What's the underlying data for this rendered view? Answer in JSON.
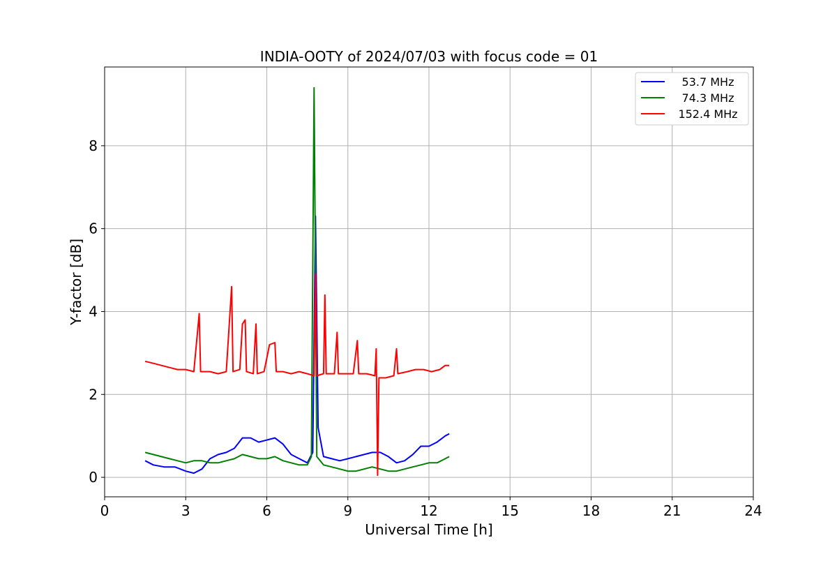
{
  "chart_data": {
    "type": "line",
    "title": "INDIA-OOTY of 2024/07/03 with focus code = 01",
    "xlabel": "Universal Time [h]",
    "ylabel": "Y-factor [dB]",
    "xlim": [
      0,
      24
    ],
    "ylim": [
      -0.47,
      9.9
    ],
    "xticks": [
      0,
      3,
      6,
      9,
      12,
      15,
      18,
      21,
      24
    ],
    "yticks": [
      0,
      2,
      4,
      6,
      8
    ],
    "grid": true,
    "legend_position": "top-right",
    "series": [
      {
        "name": "53.7 MHz",
        "color": "#0000ff",
        "points": [
          [
            1.5,
            0.4
          ],
          [
            1.8,
            0.3
          ],
          [
            2.2,
            0.25
          ],
          [
            2.6,
            0.25
          ],
          [
            3.0,
            0.15
          ],
          [
            3.3,
            0.1
          ],
          [
            3.6,
            0.2
          ],
          [
            3.9,
            0.45
          ],
          [
            4.2,
            0.55
          ],
          [
            4.5,
            0.6
          ],
          [
            4.8,
            0.7
          ],
          [
            5.1,
            0.95
          ],
          [
            5.4,
            0.95
          ],
          [
            5.7,
            0.85
          ],
          [
            6.0,
            0.9
          ],
          [
            6.3,
            0.95
          ],
          [
            6.6,
            0.8
          ],
          [
            6.9,
            0.55
          ],
          [
            7.2,
            0.45
          ],
          [
            7.5,
            0.35
          ],
          [
            7.7,
            0.6
          ],
          [
            7.8,
            6.3
          ],
          [
            7.9,
            1.2
          ],
          [
            8.1,
            0.5
          ],
          [
            8.4,
            0.45
          ],
          [
            8.7,
            0.4
          ],
          [
            9.0,
            0.45
          ],
          [
            9.3,
            0.5
          ],
          [
            9.6,
            0.55
          ],
          [
            9.9,
            0.6
          ],
          [
            10.2,
            0.6
          ],
          [
            10.5,
            0.5
          ],
          [
            10.8,
            0.35
          ],
          [
            11.1,
            0.4
          ],
          [
            11.4,
            0.55
          ],
          [
            11.7,
            0.75
          ],
          [
            12.0,
            0.75
          ],
          [
            12.3,
            0.85
          ],
          [
            12.6,
            1.0
          ],
          [
            12.75,
            1.05
          ]
        ]
      },
      {
        "name": "74.3 MHz",
        "color": "#008000",
        "points": [
          [
            1.5,
            0.6
          ],
          [
            1.8,
            0.55
          ],
          [
            2.1,
            0.5
          ],
          [
            2.4,
            0.45
          ],
          [
            2.7,
            0.4
          ],
          [
            3.0,
            0.35
          ],
          [
            3.3,
            0.4
          ],
          [
            3.6,
            0.4
          ],
          [
            3.9,
            0.35
          ],
          [
            4.2,
            0.35
          ],
          [
            4.5,
            0.4
          ],
          [
            4.8,
            0.45
          ],
          [
            5.1,
            0.55
          ],
          [
            5.4,
            0.5
          ],
          [
            5.7,
            0.45
          ],
          [
            6.0,
            0.45
          ],
          [
            6.3,
            0.5
          ],
          [
            6.6,
            0.4
          ],
          [
            6.9,
            0.35
          ],
          [
            7.2,
            0.3
          ],
          [
            7.5,
            0.3
          ],
          [
            7.65,
            0.5
          ],
          [
            7.75,
            9.4
          ],
          [
            7.85,
            0.5
          ],
          [
            8.1,
            0.3
          ],
          [
            8.4,
            0.25
          ],
          [
            8.7,
            0.2
          ],
          [
            9.0,
            0.15
          ],
          [
            9.3,
            0.15
          ],
          [
            9.6,
            0.2
          ],
          [
            9.9,
            0.25
          ],
          [
            10.2,
            0.2
          ],
          [
            10.5,
            0.15
          ],
          [
            10.8,
            0.15
          ],
          [
            11.1,
            0.2
          ],
          [
            11.4,
            0.25
          ],
          [
            11.7,
            0.3
          ],
          [
            12.0,
            0.35
          ],
          [
            12.3,
            0.35
          ],
          [
            12.6,
            0.45
          ],
          [
            12.75,
            0.5
          ]
        ]
      },
      {
        "name": "152.4 MHz",
        "color": "#ff0000",
        "points": [
          [
            1.5,
            2.8
          ],
          [
            1.8,
            2.75
          ],
          [
            2.1,
            2.7
          ],
          [
            2.4,
            2.65
          ],
          [
            2.7,
            2.6
          ],
          [
            3.0,
            2.6
          ],
          [
            3.3,
            2.55
          ],
          [
            3.5,
            3.95
          ],
          [
            3.55,
            2.55
          ],
          [
            3.9,
            2.55
          ],
          [
            4.2,
            2.5
          ],
          [
            4.5,
            2.55
          ],
          [
            4.7,
            4.6
          ],
          [
            4.75,
            2.55
          ],
          [
            5.0,
            2.6
          ],
          [
            5.1,
            3.7
          ],
          [
            5.2,
            3.8
          ],
          [
            5.25,
            2.55
          ],
          [
            5.5,
            2.5
          ],
          [
            5.6,
            3.7
          ],
          [
            5.65,
            2.5
          ],
          [
            5.9,
            2.55
          ],
          [
            6.1,
            3.2
          ],
          [
            6.3,
            3.25
          ],
          [
            6.35,
            2.55
          ],
          [
            6.6,
            2.55
          ],
          [
            6.9,
            2.5
          ],
          [
            7.2,
            2.55
          ],
          [
            7.5,
            2.5
          ],
          [
            7.75,
            2.45
          ],
          [
            7.8,
            4.9
          ],
          [
            7.85,
            2.45
          ],
          [
            8.1,
            2.5
          ],
          [
            8.15,
            4.4
          ],
          [
            8.2,
            2.5
          ],
          [
            8.5,
            2.5
          ],
          [
            8.6,
            3.5
          ],
          [
            8.65,
            2.5
          ],
          [
            8.9,
            2.5
          ],
          [
            9.2,
            2.5
          ],
          [
            9.35,
            3.3
          ],
          [
            9.4,
            2.5
          ],
          [
            9.7,
            2.5
          ],
          [
            10.0,
            2.45
          ],
          [
            10.05,
            3.1
          ],
          [
            10.1,
            0.05
          ],
          [
            10.15,
            2.4
          ],
          [
            10.4,
            2.4
          ],
          [
            10.7,
            2.45
          ],
          [
            10.8,
            3.1
          ],
          [
            10.85,
            2.5
          ],
          [
            11.2,
            2.55
          ],
          [
            11.5,
            2.6
          ],
          [
            11.8,
            2.6
          ],
          [
            12.1,
            2.55
          ],
          [
            12.4,
            2.6
          ],
          [
            12.6,
            2.7
          ],
          [
            12.75,
            2.7
          ]
        ]
      }
    ]
  }
}
